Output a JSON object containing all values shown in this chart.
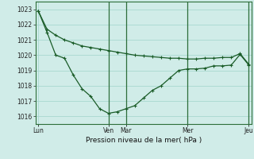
{
  "title": "",
  "xlabel": "Pression niveau de la mer( hPa )",
  "background_color": "#d0ece8",
  "grid_color": "#a8d8d0",
  "line_color": "#1a5c28",
  "ylim": [
    1015.5,
    1023.5
  ],
  "xlim": [
    -0.3,
    24.3
  ],
  "xtick_labels": [
    "Lun",
    "Ven",
    "Mar",
    "Mer",
    "Jeu"
  ],
  "xtick_positions": [
    0,
    8,
    10,
    17,
    24
  ],
  "yticks": [
    1016,
    1017,
    1018,
    1019,
    1020,
    1021,
    1022,
    1023
  ],
  "line1_x": [
    0,
    1,
    2,
    3,
    4,
    5,
    6,
    7,
    8,
    9,
    10,
    11,
    12,
    13,
    14,
    15,
    16,
    17,
    18,
    19,
    20,
    21,
    22,
    23,
    24
  ],
  "line1_y": [
    1022.9,
    1021.7,
    1021.3,
    1021.0,
    1020.8,
    1020.6,
    1020.5,
    1020.4,
    1020.3,
    1020.2,
    1020.1,
    1020.0,
    1019.95,
    1019.9,
    1019.85,
    1019.8,
    1019.8,
    1019.75,
    1019.75,
    1019.8,
    1019.8,
    1019.85,
    1019.85,
    1020.1,
    1019.4
  ],
  "line2_x": [
    0,
    1,
    2,
    3,
    4,
    5,
    6,
    7,
    8,
    9,
    10,
    11,
    12,
    13,
    14,
    15,
    16,
    17,
    18,
    19,
    20,
    21,
    22,
    23,
    24
  ],
  "line2_y": [
    1022.9,
    1021.5,
    1020.0,
    1019.8,
    1018.7,
    1017.8,
    1017.3,
    1016.5,
    1016.2,
    1016.3,
    1016.5,
    1016.7,
    1017.2,
    1017.7,
    1018.0,
    1018.5,
    1019.0,
    1019.1,
    1019.1,
    1019.15,
    1019.3,
    1019.3,
    1019.35,
    1020.05,
    1019.35
  ],
  "vline_positions": [
    8,
    10,
    17,
    24
  ],
  "vline_color": "#2d6e3a",
  "spine_color": "#2d6e3a"
}
